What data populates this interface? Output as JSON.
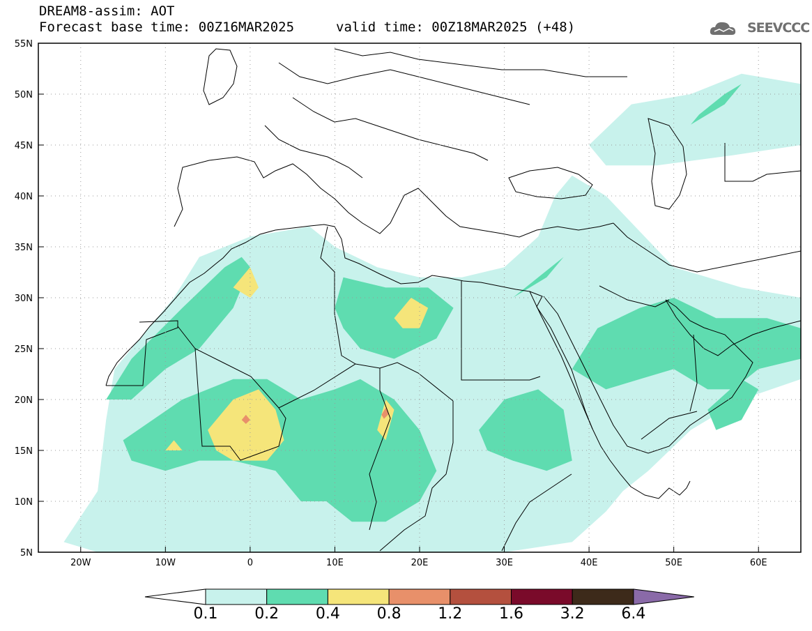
{
  "title": {
    "line1": "DREAM8-assim: AOT",
    "line2": "Forecast base time: 00Z16MAR2025",
    "valid": "valid time: 00Z18MAR2025 (+48)"
  },
  "logo": {
    "text": "SEEVCCC",
    "icon": "cloud-logo-icon"
  },
  "axes": {
    "lon_range": [
      -25,
      65
    ],
    "lat_range": [
      5,
      55
    ],
    "lon_ticks": [
      {
        "value": -20,
        "label": "20W"
      },
      {
        "value": -10,
        "label": "10W"
      },
      {
        "value": 0,
        "label": "0"
      },
      {
        "value": 10,
        "label": "10E"
      },
      {
        "value": 20,
        "label": "20E"
      },
      {
        "value": 30,
        "label": "30E"
      },
      {
        "value": 40,
        "label": "40E"
      },
      {
        "value": 50,
        "label": "50E"
      },
      {
        "value": 60,
        "label": "60E"
      }
    ],
    "lat_ticks": [
      {
        "value": 5,
        "label": "5N"
      },
      {
        "value": 10,
        "label": "10N"
      },
      {
        "value": 15,
        "label": "15N"
      },
      {
        "value": 20,
        "label": "20N"
      },
      {
        "value": 25,
        "label": "25N"
      },
      {
        "value": 30,
        "label": "30N"
      },
      {
        "value": 35,
        "label": "35N"
      },
      {
        "value": 40,
        "label": "40N"
      },
      {
        "value": 45,
        "label": "45N"
      },
      {
        "value": 50,
        "label": "50N"
      },
      {
        "value": 55,
        "label": "55N"
      }
    ],
    "grid": true
  },
  "colorbar": {
    "levels": [
      "0.1",
      "0.2",
      "0.4",
      "0.8",
      "1.2",
      "1.6",
      "3.2",
      "6.4"
    ],
    "colors": {
      "below": "#ffffff",
      "bins": [
        "#c8f2ec",
        "#5fdcb0",
        "#f5e57a",
        "#e8906a",
        "#b4503e",
        "#7a0a2a",
        "#3d2a1a"
      ],
      "above": "#8a6aa8"
    }
  },
  "regions": {
    "light": [
      [
        [
          -22,
          6
        ],
        [
          -18,
          11
        ],
        [
          -17,
          18
        ],
        [
          -16,
          23
        ],
        [
          -13,
          26
        ],
        [
          -9,
          30
        ],
        [
          -6,
          34
        ],
        [
          0,
          36
        ],
        [
          7,
          37
        ],
        [
          10,
          35
        ],
        [
          15,
          33
        ],
        [
          20,
          32
        ],
        [
          25,
          32
        ],
        [
          30,
          33
        ],
        [
          34,
          36
        ],
        [
          36,
          40
        ],
        [
          38,
          42
        ],
        [
          42,
          40
        ],
        [
          50,
          33
        ],
        [
          58,
          31
        ],
        [
          65,
          30
        ],
        [
          65,
          22
        ],
        [
          58,
          20
        ],
        [
          52,
          17
        ],
        [
          47,
          13
        ],
        [
          44,
          11
        ],
        [
          42,
          9
        ],
        [
          38,
          6
        ],
        [
          30,
          5
        ],
        [
          20,
          5
        ],
        [
          10,
          5
        ],
        [
          0,
          5
        ],
        [
          -10,
          5
        ],
        [
          -18,
          5
        ],
        [
          -22,
          6
        ]
      ],
      [
        [
          40,
          45
        ],
        [
          45,
          49
        ],
        [
          52,
          50
        ],
        [
          58,
          52
        ],
        [
          65,
          51
        ],
        [
          65,
          45
        ],
        [
          57,
          44
        ],
        [
          48,
          43
        ],
        [
          42,
          43
        ],
        [
          40,
          45
        ]
      ]
    ],
    "medium": [
      [
        [
          -17,
          20
        ],
        [
          -14,
          24
        ],
        [
          -8,
          29
        ],
        [
          -3,
          33
        ],
        [
          -1,
          34
        ],
        [
          0,
          33
        ],
        [
          -2,
          29
        ],
        [
          -6,
          25
        ],
        [
          -10,
          23
        ],
        [
          -14,
          20
        ],
        [
          -17,
          20
        ]
      ],
      [
        [
          -15,
          16
        ],
        [
          -8,
          20
        ],
        [
          -2,
          22
        ],
        [
          2,
          22
        ],
        [
          6,
          20
        ],
        [
          10,
          21
        ],
        [
          13,
          22
        ],
        [
          17,
          20
        ],
        [
          20,
          17
        ],
        [
          22,
          13
        ],
        [
          20,
          10
        ],
        [
          16,
          8
        ],
        [
          12,
          8
        ],
        [
          9,
          10
        ],
        [
          6,
          10
        ],
        [
          3,
          13
        ],
        [
          -2,
          14
        ],
        [
          -6,
          14
        ],
        [
          -10,
          13
        ],
        [
          -14,
          14
        ],
        [
          -15,
          16
        ]
      ],
      [
        [
          10,
          29
        ],
        [
          11,
          32
        ],
        [
          16,
          31
        ],
        [
          21,
          31
        ],
        [
          24,
          29
        ],
        [
          22,
          26
        ],
        [
          17,
          24
        ],
        [
          13,
          25
        ],
        [
          11,
          27
        ],
        [
          10,
          29
        ]
      ],
      [
        [
          27,
          17
        ],
        [
          30,
          20
        ],
        [
          34,
          21
        ],
        [
          37,
          19
        ],
        [
          38,
          14
        ],
        [
          35,
          13
        ],
        [
          31,
          14
        ],
        [
          28,
          15
        ],
        [
          27,
          17
        ]
      ],
      [
        [
          38,
          23
        ],
        [
          41,
          27
        ],
        [
          46,
          29
        ],
        [
          50,
          30
        ],
        [
          55,
          28
        ],
        [
          61,
          28
        ],
        [
          65,
          27
        ],
        [
          65,
          24
        ],
        [
          60,
          23
        ],
        [
          57,
          21
        ],
        [
          54,
          21
        ],
        [
          50,
          23
        ],
        [
          46,
          22
        ],
        [
          42,
          21
        ],
        [
          38,
          23
        ]
      ],
      [
        [
          54,
          19
        ],
        [
          58,
          22
        ],
        [
          60,
          21
        ],
        [
          58,
          18
        ],
        [
          55,
          17
        ],
        [
          54,
          19
        ]
      ],
      [
        [
          52,
          47
        ],
        [
          56,
          49
        ],
        [
          58,
          51
        ],
        [
          56,
          50
        ],
        [
          53,
          48
        ],
        [
          52,
          47
        ]
      ],
      [
        [
          31,
          30
        ],
        [
          34,
          32
        ],
        [
          37,
          34
        ],
        [
          39,
          36
        ],
        [
          40,
          37
        ],
        [
          38,
          35
        ],
        [
          35,
          32
        ],
        [
          31,
          30
        ]
      ]
    ],
    "high": [
      [
        [
          -5,
          17
        ],
        [
          -2,
          20
        ],
        [
          1,
          21
        ],
        [
          3,
          19
        ],
        [
          4,
          16
        ],
        [
          2,
          14
        ],
        [
          -2,
          14
        ],
        [
          -4,
          15
        ],
        [
          -5,
          17
        ]
      ],
      [
        [
          -2,
          31
        ],
        [
          0,
          33
        ],
        [
          1,
          31
        ],
        [
          0,
          30
        ],
        [
          -2,
          31
        ]
      ],
      [
        [
          -10,
          15
        ],
        [
          -9,
          16
        ],
        [
          -8,
          15
        ],
        [
          -10,
          15
        ]
      ],
      [
        [
          17,
          28
        ],
        [
          19,
          30
        ],
        [
          21,
          29
        ],
        [
          20,
          27
        ],
        [
          18,
          27
        ],
        [
          17,
          28
        ]
      ],
      [
        [
          15,
          17
        ],
        [
          16,
          20
        ],
        [
          17,
          19
        ],
        [
          16,
          16
        ],
        [
          15,
          17
        ]
      ]
    ],
    "peak": [
      [
        [
          -1,
          18
        ],
        [
          -0.5,
          18.5
        ],
        [
          0,
          18
        ],
        [
          -0.5,
          17.6
        ],
        [
          -1,
          18
        ]
      ],
      [
        [
          15.5,
          18.5
        ],
        [
          16,
          19.2
        ],
        [
          16.4,
          18.6
        ],
        [
          15.8,
          18.1
        ],
        [
          15.5,
          18.5
        ]
      ]
    ]
  }
}
